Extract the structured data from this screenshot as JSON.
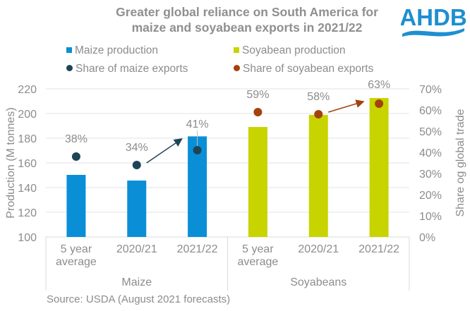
{
  "logo_text": "AHDB",
  "chart_data": {
    "type": "bar",
    "title": "Greater global reliance on South America for maize and soyabean exports in 2021/22",
    "groups": [
      {
        "name": "Maize",
        "categories": [
          "5 year average",
          "2020/21",
          "2021/22"
        ]
      },
      {
        "name": "Soyabeans",
        "categories": [
          "5 year average",
          "2020/21",
          "2021/22"
        ]
      }
    ],
    "category_labels": [
      [
        "5 year",
        "average"
      ],
      [
        "2020/21"
      ],
      [
        "2021/22"
      ],
      [
        "5 year",
        "average"
      ],
      [
        "2020/21"
      ],
      [
        "2021/22"
      ]
    ],
    "series": [
      {
        "name": "Maize production",
        "kind": "bar",
        "axis": "left",
        "color": "#0A8FD6",
        "values": [
          150.3,
          145.7,
          181.5,
          null,
          null,
          null
        ]
      },
      {
        "name": "Soyabean production",
        "kind": "bar",
        "axis": "left",
        "color": "#C8D400",
        "values": [
          null,
          null,
          null,
          189.1,
          198.9,
          212.6
        ]
      },
      {
        "name": "Share of maize exports",
        "kind": "scatter",
        "axis": "right",
        "color": "#1E4557",
        "values": [
          38,
          34,
          41,
          null,
          null,
          null
        ],
        "labels": [
          "38%",
          "34%",
          "41%",
          null,
          null,
          null
        ]
      },
      {
        "name": "Share of soyabean exports",
        "kind": "scatter",
        "axis": "right",
        "color": "#A3420C",
        "values": [
          null,
          null,
          null,
          59,
          58,
          63
        ],
        "labels": [
          null,
          null,
          null,
          "59%",
          "58%",
          "63%"
        ]
      }
    ],
    "ylabel": "Production (M tonnes)",
    "ylim": [
      100,
      220
    ],
    "yticks": [
      "100",
      "120",
      "140",
      "160",
      "180",
      "200",
      "220"
    ],
    "y2label": "Share og global trade",
    "y2lim": [
      0,
      70
    ],
    "y2ticks": [
      "0%",
      "10%",
      "20%",
      "30%",
      "40%",
      "50%",
      "60%",
      "70%"
    ],
    "grid": true,
    "legend": "top",
    "annotations": [
      {
        "type": "arrow",
        "from_category": 1,
        "to_category": 2,
        "series": "Share of maize exports"
      },
      {
        "type": "arrow",
        "from_category": 4,
        "to_category": 5,
        "series": "Share of soyabean exports"
      }
    ],
    "source": "Source: USDA (August 2021 forecasts)"
  }
}
